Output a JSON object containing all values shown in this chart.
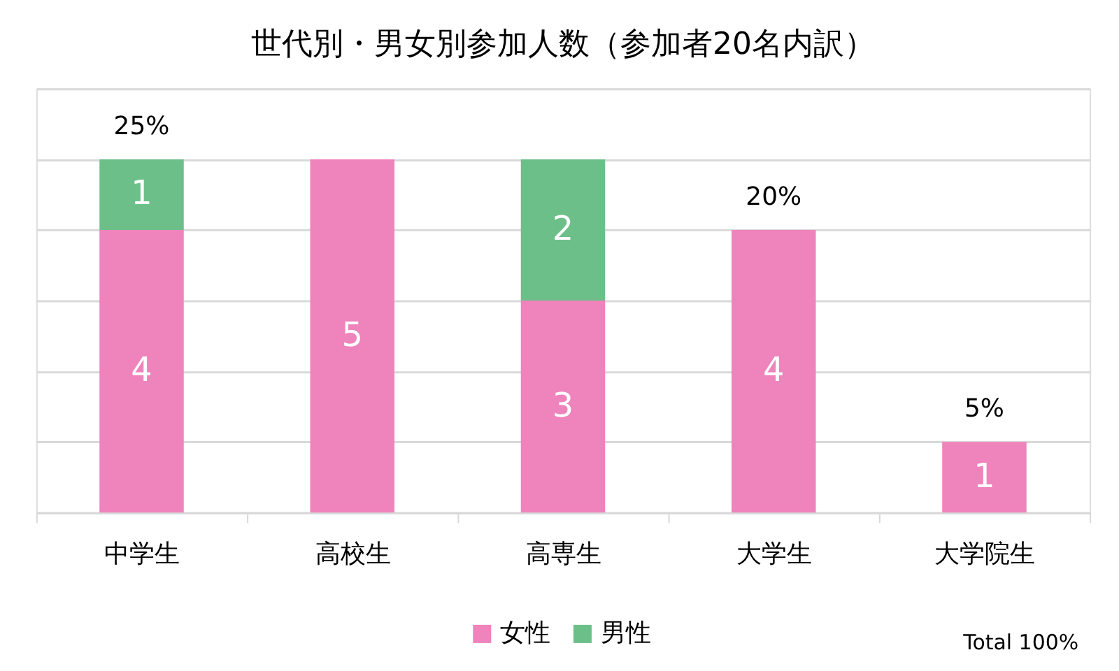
{
  "chart_data": {
    "type": "bar",
    "stacked": true,
    "title": "世代別・男女別参加人数（参加者20名内訳）",
    "categories": [
      "中学生",
      "高校生",
      "高専生",
      "大学生",
      "大学院生"
    ],
    "series": [
      {
        "name": "女性",
        "color": "#ef83bc",
        "values": [
          4,
          5,
          3,
          4,
          1
        ]
      },
      {
        "name": "男性",
        "color": "#6dbf8a",
        "values": [
          1,
          null,
          2,
          null,
          null
        ]
      }
    ],
    "data_labels": true,
    "ylim": [
      0,
      6
    ],
    "yticks": [
      {
        "value": 0,
        "label": null
      },
      {
        "value": 1,
        "label": null
      },
      {
        "value": 2,
        "label": null
      },
      {
        "value": 3,
        "label": null
      },
      {
        "value": 4,
        "label": null
      },
      {
        "value": 5,
        "label": null
      },
      {
        "value": 6,
        "label": null
      }
    ],
    "grid": "y",
    "tick_labels": "x",
    "legend": "bottom",
    "annotations": [
      {
        "text": "25%",
        "x": "中学生",
        "y": 5
      },
      {
        "text": "20%",
        "x": "大学生",
        "y": 4
      },
      {
        "text": "5%",
        "x": "大学院生",
        "y": 1
      },
      "Total 100%"
    ]
  }
}
